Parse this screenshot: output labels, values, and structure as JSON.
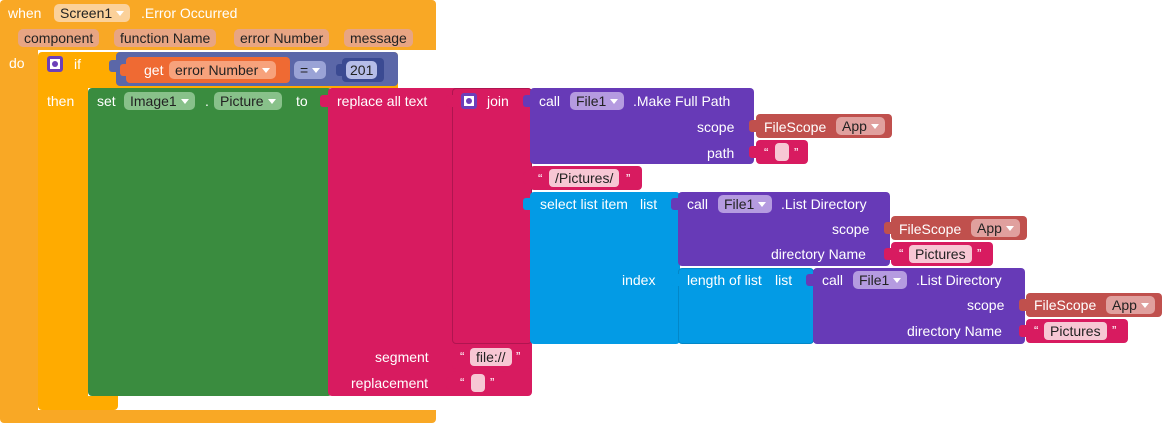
{
  "event": {
    "when": "when",
    "component": "Screen1",
    "event_name": ".Error Occurred",
    "params": [
      "component",
      "function Name",
      "error Number",
      "message"
    ],
    "do": "do"
  },
  "if_block": {
    "if": "if",
    "then": "then",
    "get": "get",
    "get_var": "error Number",
    "op": "=",
    "number": "201"
  },
  "set_block": {
    "set": "set",
    "component": "Image1",
    "dot": ".",
    "property": "Picture",
    "to": "to"
  },
  "replace": {
    "label": "replace all text",
    "segment_label": "segment",
    "replacement_label": "replacement",
    "segment_value": "file://",
    "replacement_value": ""
  },
  "join": {
    "label": "join"
  },
  "make_full_path": {
    "call": "call",
    "component": "File1",
    "method": ".Make Full Path",
    "scope_label": "scope",
    "path_label": "path",
    "scope_type": "FileScope",
    "scope_value": "App",
    "path_value": ""
  },
  "pictures_text": "/Pictures/",
  "select_list_item": {
    "label": "select list item",
    "list_label": "list",
    "index_label": "index"
  },
  "list_directory_1": {
    "call": "call",
    "component": "File1",
    "method": ".List Directory",
    "scope_label": "scope",
    "dir_label": "directory Name",
    "scope_type": "FileScope",
    "scope_value": "App",
    "dir_value": "Pictures"
  },
  "length_of_list": {
    "label": "length of list",
    "list_label": "list"
  },
  "list_directory_2": {
    "call": "call",
    "component": "File1",
    "method": ".List Directory",
    "scope_label": "scope",
    "dir_label": "directory Name",
    "scope_type": "FileScope",
    "scope_value": "App",
    "dir_value": "Pictures"
  },
  "quotes": {
    "open": "“",
    "close": "”"
  },
  "colors": {
    "event": "#f9a825",
    "event_dark": "#e0901a",
    "param": "#d4876a",
    "control": "#ffab00",
    "logic": "#5b67a8",
    "variable": "#ef6a33",
    "component_set": "#3a8c3f",
    "text": "#d81b60",
    "file_method": "#673ab7",
    "lists": "#039be5",
    "helper": "#c0504d"
  }
}
